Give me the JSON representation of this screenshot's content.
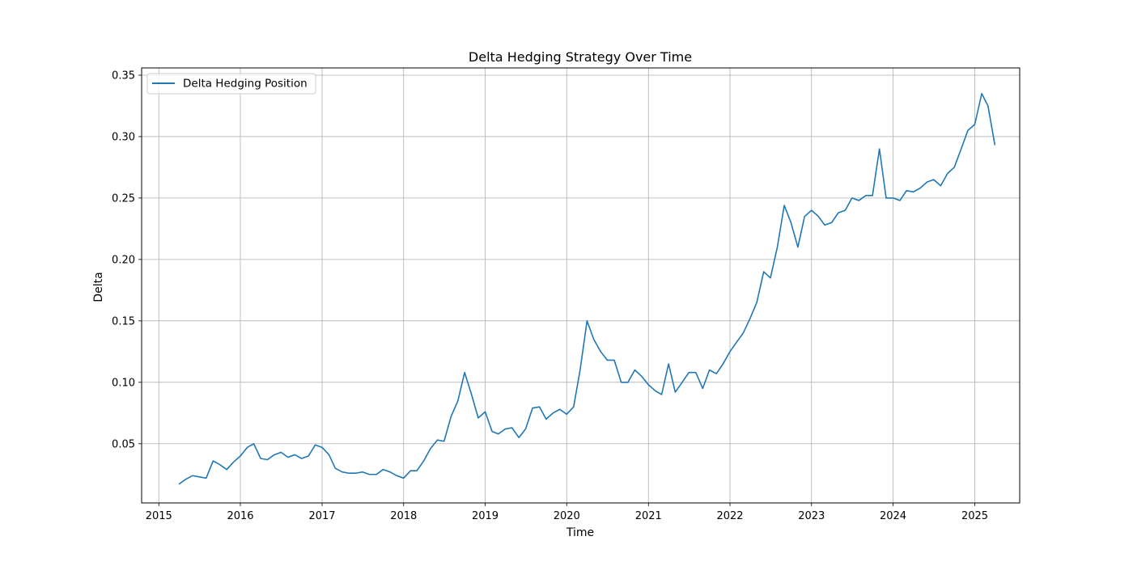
{
  "chart_data": {
    "type": "line",
    "title": "Delta Hedging Strategy Over Time",
    "xlabel": "Time",
    "ylabel": "Delta",
    "grid": true,
    "legend_position": "upper-left",
    "x_ticks": [
      "2015",
      "2016",
      "2017",
      "2018",
      "2019",
      "2020",
      "2021",
      "2022",
      "2023",
      "2024",
      "2025"
    ],
    "y_ticks": [
      "0.05",
      "0.10",
      "0.15",
      "0.20",
      "0.25",
      "0.30",
      "0.35"
    ],
    "xlim": [
      "2014-10-16",
      "2025-07-21"
    ],
    "ylim": [
      0.0018,
      0.3559
    ],
    "series": [
      {
        "name": "Delta Hedging Position",
        "color": "#1f77b4",
        "x": [
          "2015-04-01",
          "2015-05-01",
          "2015-06-01",
          "2015-07-01",
          "2015-08-01",
          "2015-09-01",
          "2015-10-01",
          "2015-11-01",
          "2015-12-01",
          "2016-01-01",
          "2016-02-01",
          "2016-03-01",
          "2016-04-01",
          "2016-05-01",
          "2016-06-01",
          "2016-07-01",
          "2016-08-01",
          "2016-09-01",
          "2016-10-01",
          "2016-11-01",
          "2016-12-01",
          "2017-01-01",
          "2017-02-01",
          "2017-03-01",
          "2017-04-01",
          "2017-05-01",
          "2017-06-01",
          "2017-07-01",
          "2017-08-01",
          "2017-09-01",
          "2017-10-01",
          "2017-11-01",
          "2017-12-01",
          "2018-01-01",
          "2018-02-01",
          "2018-03-01",
          "2018-04-01",
          "2018-05-01",
          "2018-06-01",
          "2018-07-01",
          "2018-08-01",
          "2018-09-01",
          "2018-10-01",
          "2018-11-01",
          "2018-12-01",
          "2019-01-01",
          "2019-02-01",
          "2019-03-01",
          "2019-04-01",
          "2019-05-01",
          "2019-06-01",
          "2019-07-01",
          "2019-08-01",
          "2019-09-01",
          "2019-10-01",
          "2019-11-01",
          "2019-12-01",
          "2020-01-01",
          "2020-02-01",
          "2020-03-01",
          "2020-04-01",
          "2020-05-01",
          "2020-06-01",
          "2020-07-01",
          "2020-08-01",
          "2020-09-01",
          "2020-10-01",
          "2020-11-01",
          "2020-12-01",
          "2021-01-01",
          "2021-02-01",
          "2021-03-01",
          "2021-04-01",
          "2021-05-01",
          "2021-06-01",
          "2021-07-01",
          "2021-08-01",
          "2021-09-01",
          "2021-10-01",
          "2021-11-01",
          "2021-12-01",
          "2022-01-01",
          "2022-02-01",
          "2022-03-01",
          "2022-04-01",
          "2022-05-01",
          "2022-06-01",
          "2022-07-01",
          "2022-08-01",
          "2022-09-01",
          "2022-10-01",
          "2022-11-01",
          "2022-12-01",
          "2023-01-01",
          "2023-02-01",
          "2023-03-01",
          "2023-04-01",
          "2023-05-01",
          "2023-06-01",
          "2023-07-01",
          "2023-08-01",
          "2023-09-01",
          "2023-10-01",
          "2023-11-01",
          "2023-12-01",
          "2024-01-01",
          "2024-02-01",
          "2024-03-01",
          "2024-04-01",
          "2024-05-01",
          "2024-06-01",
          "2024-07-01",
          "2024-08-01",
          "2024-09-01",
          "2024-10-01",
          "2024-11-01",
          "2024-12-01",
          "2025-01-01",
          "2025-02-01",
          "2025-03-01",
          "2025-04-01"
        ],
        "y": [
          0.017,
          0.021,
          0.024,
          0.023,
          0.022,
          0.036,
          0.033,
          0.029,
          0.035,
          0.04,
          0.047,
          0.05,
          0.038,
          0.037,
          0.041,
          0.043,
          0.039,
          0.041,
          0.038,
          0.04,
          0.049,
          0.047,
          0.041,
          0.03,
          0.027,
          0.026,
          0.026,
          0.027,
          0.025,
          0.025,
          0.029,
          0.027,
          0.024,
          0.022,
          0.028,
          0.028,
          0.036,
          0.046,
          0.053,
          0.052,
          0.072,
          0.085,
          0.108,
          0.09,
          0.071,
          0.076,
          0.06,
          0.058,
          0.062,
          0.063,
          0.055,
          0.062,
          0.079,
          0.08,
          0.07,
          0.075,
          0.078,
          0.074,
          0.08,
          0.11,
          0.15,
          0.135,
          0.125,
          0.118,
          0.118,
          0.1,
          0.1,
          0.11,
          0.105,
          0.098,
          0.093,
          0.09,
          0.115,
          0.092,
          0.1,
          0.108,
          0.108,
          0.095,
          0.11,
          0.107,
          0.115,
          0.125,
          0.133,
          0.14,
          0.152,
          0.165,
          0.19,
          0.185,
          0.21,
          0.244,
          0.23,
          0.21,
          0.235,
          0.24,
          0.235,
          0.228,
          0.23,
          0.238,
          0.24,
          0.25,
          0.248,
          0.252,
          0.252,
          0.29,
          0.25,
          0.25,
          0.248,
          0.256,
          0.255,
          0.258,
          0.263,
          0.265,
          0.26,
          0.27,
          0.275,
          0.29,
          0.305,
          0.31,
          0.335,
          0.325,
          0.293
        ]
      }
    ]
  }
}
